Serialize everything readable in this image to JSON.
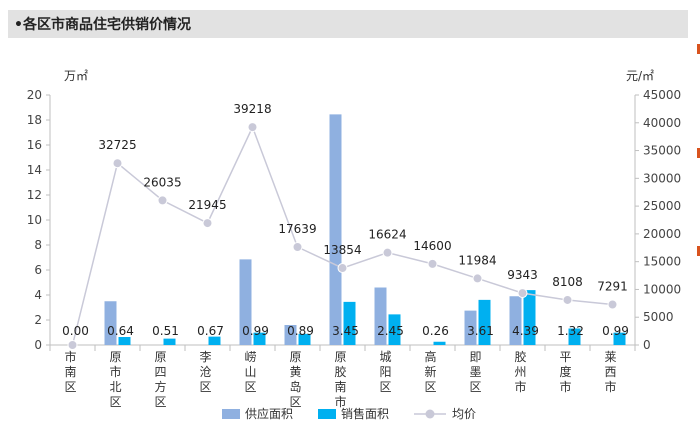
{
  "header": {
    "title": "•各区市商品住宅供销价情况"
  },
  "chart_data": {
    "type": "bar",
    "categories": [
      "市南区",
      "原市北区",
      "原四方区",
      "李沧区",
      "崂山区",
      "原黄岛区",
      "原胶南市",
      "城阳区",
      "高新区",
      "即墨区",
      "胶州市",
      "平度市",
      "莱西市"
    ],
    "series": [
      {
        "name": "供应面积",
        "type": "bar",
        "axis": "left",
        "color": "#8fb0e0",
        "values": [
          0,
          3.5,
          0,
          0,
          6.85,
          1.6,
          18.45,
          4.6,
          0,
          2.75,
          3.9,
          0,
          0
        ]
      },
      {
        "name": "销售面积",
        "type": "bar",
        "axis": "left",
        "color": "#00b0f0",
        "values": [
          0.0,
          0.64,
          0.51,
          0.67,
          0.99,
          0.89,
          3.45,
          2.45,
          0.26,
          3.61,
          4.39,
          1.32,
          0.99
        ],
        "labels": [
          "0.00",
          "0.64",
          "0.51",
          "0.67",
          "0.99",
          "0.89",
          "3.45",
          "2.45",
          "0.26",
          "3.61",
          "4.39",
          "1.32",
          "0.99"
        ]
      },
      {
        "name": "均价",
        "type": "line",
        "axis": "right",
        "color": "#c9c9d8",
        "values": [
          0,
          32725,
          26035,
          21945,
          39218,
          17639,
          13854,
          16624,
          14600,
          11984,
          9343,
          8108,
          7291
        ],
        "labels": [
          "",
          "32725",
          "26035",
          "21945",
          "39218",
          "17639",
          "13854",
          "16624",
          "14600",
          "11984",
          "9343",
          "8108",
          "7291"
        ]
      }
    ],
    "y_left": {
      "unit": "万㎡",
      "ylim": [
        0,
        20
      ],
      "ticks": [
        "0",
        "2",
        "4",
        "6",
        "8",
        "10",
        "12",
        "14",
        "16",
        "18",
        "20"
      ]
    },
    "y_right": {
      "unit": "元/㎡",
      "ylim": [
        0,
        45000
      ],
      "ticks": [
        "0",
        "5000",
        "10000",
        "15000",
        "20000",
        "25000",
        "30000",
        "35000",
        "40000",
        "45000"
      ]
    },
    "legend_position": "bottom",
    "grid": false
  }
}
